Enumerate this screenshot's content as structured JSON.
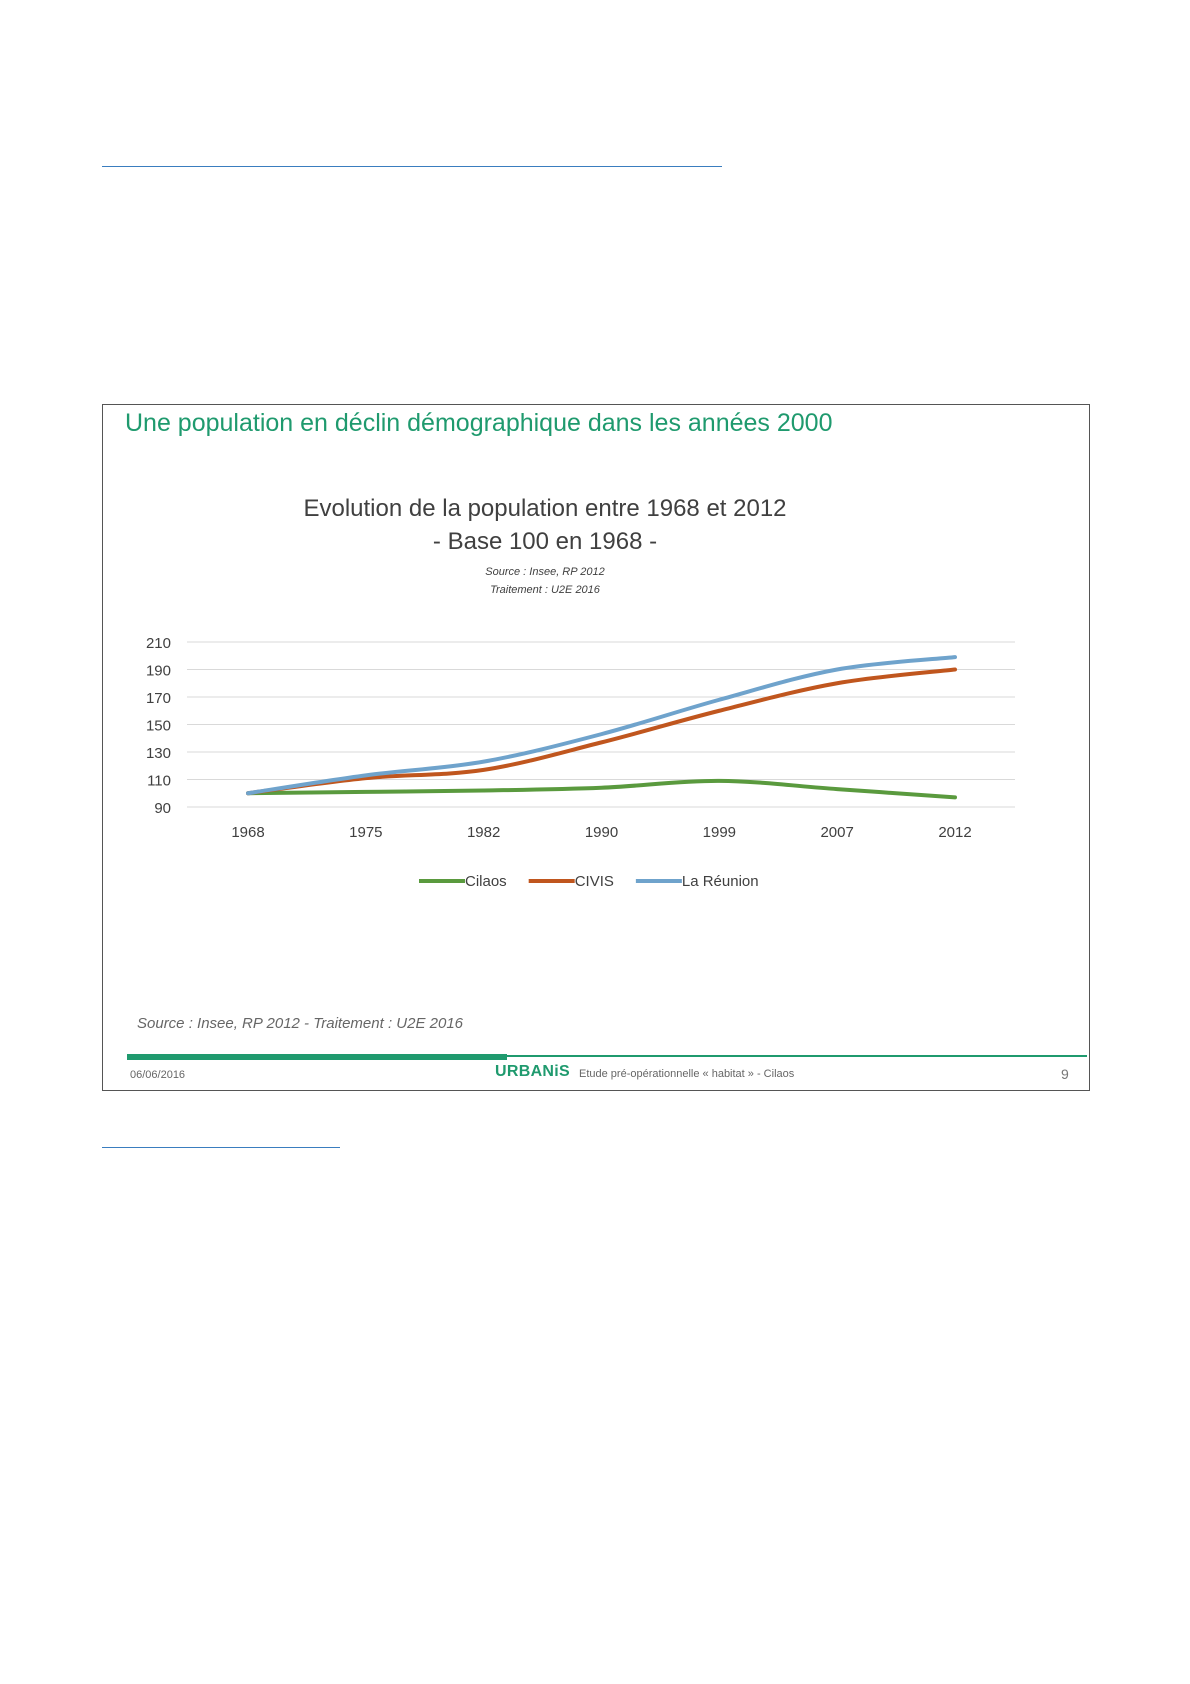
{
  "slide": {
    "title": "Une population en déclin démographique dans les années 2000",
    "source_note": "Source : Insee, RP 2012 - Traitement : U2E 2016",
    "footer": {
      "date": "06/06/2016",
      "logo": "URBANiS",
      "subtitle": "Etude pré-opérationnelle « habitat » - Cilaos",
      "page": "9"
    }
  },
  "colors": {
    "accent": "#1f9a6e",
    "rule": "#3a7dbf"
  },
  "chart_data": {
    "type": "line",
    "title": "Evolution de la population entre 1968 et 2012",
    "subtitle": "- Base 100 en 1968 -",
    "source": "Source : Insee, RP 2012",
    "treatment": "Traitement : U2E 2016",
    "categories": [
      "1968",
      "1975",
      "1982",
      "1990",
      "1999",
      "2007",
      "2012"
    ],
    "yticks": [
      90,
      110,
      130,
      150,
      170,
      190,
      210
    ],
    "ylim": [
      90,
      210
    ],
    "grid": true,
    "legend_position": "bottom",
    "series": [
      {
        "name": "Cilaos",
        "color": "#5a9a3e",
        "values": [
          100,
          101,
          102,
          104,
          109,
          103,
          97
        ]
      },
      {
        "name": "CIVIS",
        "color": "#c0561e",
        "values": [
          100,
          111,
          117,
          137,
          160,
          180,
          190
        ]
      },
      {
        "name": "La Réunion",
        "color": "#6fa3cc",
        "values": [
          100,
          113,
          123,
          143,
          168,
          190,
          199
        ]
      }
    ]
  }
}
